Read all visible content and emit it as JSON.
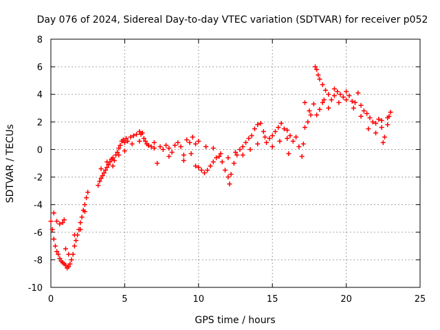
{
  "chart_data": {
    "type": "scatter",
    "title": "Day 076 of 2024, Sidereal Day-to-day VTEC variation (SDTVAR) for receiver p052",
    "xlabel": "GPS time / hours",
    "ylabel": "SDTVAR / TECUs",
    "xlim": [
      0,
      25
    ],
    "ylim": [
      -10,
      8
    ],
    "xticks": [
      0,
      5,
      10,
      15,
      20,
      25
    ],
    "yticks": [
      -10,
      -8,
      -6,
      -4,
      -2,
      0,
      2,
      4,
      6,
      8
    ],
    "grid": true,
    "marker": "+",
    "color": "#ff0000",
    "series": [
      {
        "name": "SDTVAR",
        "points": [
          [
            0.0,
            -5.2
          ],
          [
            0.1,
            -5.8
          ],
          [
            0.2,
            -6.5
          ],
          [
            0.3,
            -7.0
          ],
          [
            0.4,
            -7.4
          ],
          [
            0.5,
            -7.6
          ],
          [
            0.6,
            -7.9
          ],
          [
            0.7,
            -8.1
          ],
          [
            0.8,
            -8.2
          ],
          [
            0.9,
            -8.3
          ],
          [
            1.0,
            -8.4
          ],
          [
            1.1,
            -8.6
          ],
          [
            1.2,
            -8.5
          ],
          [
            1.3,
            -8.3
          ],
          [
            1.4,
            -8.0
          ],
          [
            1.5,
            -7.6
          ],
          [
            1.6,
            -7.0
          ],
          [
            1.7,
            -6.6
          ],
          [
            1.8,
            -6.2
          ],
          [
            1.9,
            -5.8
          ],
          [
            2.0,
            -5.3
          ],
          [
            2.1,
            -4.9
          ],
          [
            2.2,
            -4.4
          ],
          [
            2.3,
            -4.0
          ],
          [
            2.4,
            -3.5
          ],
          [
            2.5,
            -3.1
          ],
          [
            0.2,
            -4.6
          ],
          [
            0.4,
            -5.2
          ],
          [
            0.6,
            -5.4
          ],
          [
            0.8,
            -5.3
          ],
          [
            0.9,
            -5.1
          ],
          [
            1.0,
            -7.2
          ],
          [
            1.2,
            -7.6
          ],
          [
            1.6,
            -6.2
          ],
          [
            2.0,
            -5.8
          ],
          [
            2.3,
            -4.5
          ],
          [
            3.2,
            -2.6
          ],
          [
            3.3,
            -2.3
          ],
          [
            3.4,
            -2.1
          ],
          [
            3.5,
            -1.9
          ],
          [
            3.6,
            -1.7
          ],
          [
            3.7,
            -1.5
          ],
          [
            3.8,
            -1.3
          ],
          [
            3.9,
            -1.1
          ],
          [
            4.0,
            -0.9
          ],
          [
            4.1,
            -0.7
          ],
          [
            4.2,
            -0.6
          ],
          [
            4.3,
            -0.8
          ],
          [
            4.4,
            -0.4
          ],
          [
            4.5,
            -0.2
          ],
          [
            4.6,
            0.1
          ],
          [
            4.7,
            0.3
          ],
          [
            4.8,
            0.6
          ],
          [
            4.9,
            0.7
          ],
          [
            5.0,
            0.5
          ],
          [
            5.1,
            0.8
          ],
          [
            5.2,
            0.6
          ],
          [
            5.4,
            0.9
          ],
          [
            5.6,
            1.0
          ],
          [
            5.8,
            1.1
          ],
          [
            6.0,
            1.3
          ],
          [
            6.1,
            1.1
          ],
          [
            6.2,
            1.2
          ],
          [
            6.3,
            0.8
          ],
          [
            6.4,
            0.6
          ],
          [
            6.5,
            0.4
          ],
          [
            6.6,
            0.3
          ],
          [
            6.8,
            0.2
          ],
          [
            7.0,
            0.1
          ],
          [
            7.2,
            -1.0
          ],
          [
            7.4,
            0.2
          ],
          [
            7.6,
            0.0
          ],
          [
            7.8,
            0.3
          ],
          [
            8.0,
            0.1
          ],
          [
            8.2,
            -0.2
          ],
          [
            8.4,
            0.3
          ],
          [
            8.6,
            0.5
          ],
          [
            8.8,
            0.2
          ],
          [
            9.0,
            -0.4
          ],
          [
            9.2,
            0.7
          ],
          [
            9.4,
            0.5
          ],
          [
            9.6,
            0.9
          ],
          [
            9.8,
            0.4
          ],
          [
            10.0,
            0.6
          ],
          [
            3.4,
            -1.4
          ],
          [
            3.8,
            -0.9
          ],
          [
            4.2,
            -1.2
          ],
          [
            4.6,
            -0.4
          ],
          [
            5.0,
            -0.1
          ],
          [
            5.5,
            0.4
          ],
          [
            6.0,
            0.6
          ],
          [
            7.0,
            0.5
          ],
          [
            8.0,
            -0.5
          ],
          [
            9.0,
            -0.8
          ],
          [
            9.5,
            -0.3
          ],
          [
            9.8,
            -1.2
          ],
          [
            10.0,
            -1.3
          ],
          [
            10.2,
            -1.5
          ],
          [
            10.4,
            -1.7
          ],
          [
            10.6,
            -1.5
          ],
          [
            10.8,
            -1.2
          ],
          [
            11.0,
            -0.9
          ],
          [
            11.2,
            -0.6
          ],
          [
            11.4,
            -0.5
          ],
          [
            11.6,
            -0.9
          ],
          [
            11.8,
            -1.5
          ],
          [
            12.0,
            -2.0
          ],
          [
            12.1,
            -2.5
          ],
          [
            12.2,
            -1.8
          ],
          [
            12.4,
            -1.0
          ],
          [
            12.6,
            -0.4
          ],
          [
            12.8,
            0.0
          ],
          [
            13.0,
            0.2
          ],
          [
            13.2,
            0.5
          ],
          [
            13.4,
            0.8
          ],
          [
            13.6,
            1.0
          ],
          [
            13.8,
            1.5
          ],
          [
            14.0,
            1.8
          ],
          [
            14.2,
            1.9
          ],
          [
            14.4,
            1.3
          ],
          [
            14.6,
            0.5
          ],
          [
            14.8,
            0.8
          ],
          [
            15.0,
            1.0
          ],
          [
            15.2,
            1.3
          ],
          [
            15.4,
            1.6
          ],
          [
            15.6,
            1.9
          ],
          [
            15.8,
            1.5
          ],
          [
            16.0,
            0.8
          ],
          [
            16.1,
            -0.3
          ],
          [
            10.5,
            0.2
          ],
          [
            11.0,
            0.1
          ],
          [
            11.5,
            -0.3
          ],
          [
            12.0,
            -0.6
          ],
          [
            12.5,
            -0.2
          ],
          [
            13.0,
            -0.4
          ],
          [
            13.5,
            0.0
          ],
          [
            14.0,
            0.4
          ],
          [
            14.5,
            0.9
          ],
          [
            15.0,
            0.2
          ],
          [
            15.5,
            0.6
          ],
          [
            16.0,
            1.4
          ],
          [
            16.2,
            1.0
          ],
          [
            16.4,
            0.6
          ],
          [
            16.6,
            0.9
          ],
          [
            16.8,
            0.2
          ],
          [
            17.0,
            -0.5
          ],
          [
            17.1,
            0.4
          ],
          [
            17.2,
            1.6
          ],
          [
            17.4,
            2.0
          ],
          [
            17.6,
            2.5
          ],
          [
            17.8,
            3.3
          ],
          [
            18.0,
            2.5
          ],
          [
            18.2,
            2.9
          ],
          [
            18.4,
            3.4
          ],
          [
            17.9,
            6.0
          ],
          [
            18.0,
            5.8
          ],
          [
            18.1,
            5.4
          ],
          [
            18.2,
            5.1
          ],
          [
            18.4,
            4.7
          ],
          [
            18.6,
            4.3
          ],
          [
            18.8,
            4.0
          ],
          [
            19.0,
            3.6
          ],
          [
            19.2,
            3.9
          ],
          [
            19.4,
            4.2
          ],
          [
            19.6,
            4.0
          ],
          [
            19.8,
            3.8
          ],
          [
            20.0,
            3.6
          ],
          [
            20.2,
            3.9
          ],
          [
            20.4,
            3.5
          ],
          [
            20.6,
            3.4
          ],
          [
            20.8,
            4.1
          ],
          [
            21.0,
            3.2
          ],
          [
            21.2,
            2.8
          ],
          [
            21.4,
            2.6
          ],
          [
            21.6,
            2.3
          ],
          [
            21.8,
            2.0
          ],
          [
            22.0,
            1.9
          ],
          [
            22.2,
            2.2
          ],
          [
            22.4,
            2.1
          ],
          [
            22.5,
            0.5
          ],
          [
            22.6,
            0.9
          ],
          [
            22.8,
            1.8
          ],
          [
            22.9,
            2.4
          ],
          [
            23.0,
            2.7
          ],
          [
            17.2,
            3.4
          ],
          [
            17.5,
            2.8
          ],
          [
            18.5,
            3.6
          ],
          [
            18.8,
            3.0
          ],
          [
            19.2,
            4.4
          ],
          [
            19.5,
            3.4
          ],
          [
            20.0,
            4.2
          ],
          [
            20.5,
            3.0
          ],
          [
            21.0,
            2.4
          ],
          [
            21.5,
            1.5
          ],
          [
            22.0,
            1.2
          ],
          [
            22.4,
            1.6
          ],
          [
            22.8,
            2.3
          ]
        ]
      }
    ]
  }
}
